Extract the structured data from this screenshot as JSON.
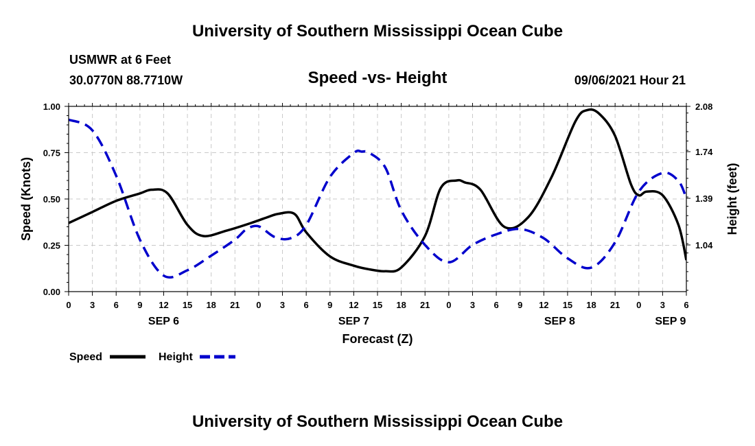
{
  "header": {
    "title": "University of Southern Mississippi Ocean Cube",
    "station": "USMWR at 6 Feet",
    "coords": "30.0770N  88.7710W",
    "timestamp": "09/06/2021 Hour 21"
  },
  "footer": {
    "title": "University of Southern Mississippi Ocean Cube"
  },
  "chart_data": {
    "type": "line",
    "title": "Speed -vs- Height",
    "xlabel": "Forecast (Z)",
    "ylabel_left": "Speed (Knots)",
    "ylabel_right": "Height (feet)",
    "x_range_hours": [
      0,
      78
    ],
    "x_ticks": [
      "0",
      "3",
      "6",
      "9",
      "12",
      "15",
      "18",
      "21",
      "0",
      "3",
      "6",
      "9",
      "12",
      "15",
      "18",
      "21",
      "0",
      "3",
      "6",
      "9",
      "12",
      "15",
      "18",
      "21",
      "0",
      "3",
      "6"
    ],
    "day_labels": [
      {
        "label": "SEP 6",
        "hour": 12
      },
      {
        "label": "SEP 7",
        "hour": 36
      },
      {
        "label": "SEP 8",
        "hour": 62
      },
      {
        "label": "SEP 9",
        "hour": 76
      }
    ],
    "y_left": {
      "range": [
        0,
        1
      ],
      "ticks": [
        "0.00",
        "0.25",
        "0.50",
        "0.75",
        "1.00"
      ]
    },
    "y_right": {
      "range": [
        0.69,
        2.08
      ],
      "ticks": [
        "1.04",
        "1.39",
        "1.74",
        "2.08"
      ],
      "tick_values": [
        1.04,
        1.39,
        1.74,
        2.08
      ]
    },
    "grid": true,
    "legend": [
      {
        "name": "Speed",
        "color": "#000000",
        "style": "solid"
      },
      {
        "name": "Height",
        "color": "#0000cc",
        "style": "dashed"
      }
    ],
    "series": [
      {
        "name": "Speed",
        "axis": "left",
        "color": "#000000",
        "x": [
          0,
          3,
          6,
          9,
          10.5,
          12.5,
          15,
          17,
          20,
          23,
          25,
          26.5,
          28.5,
          30,
          33,
          36,
          38,
          40,
          42,
          45,
          47,
          49,
          50,
          52,
          55,
          58,
          61,
          64,
          65.5,
          67,
          69,
          71,
          72,
          73,
          75,
          77,
          78
        ],
        "values": [
          0.37,
          0.43,
          0.49,
          0.53,
          0.55,
          0.53,
          0.36,
          0.3,
          0.33,
          0.37,
          0.4,
          0.42,
          0.42,
          0.32,
          0.19,
          0.14,
          0.12,
          0.11,
          0.13,
          0.3,
          0.56,
          0.6,
          0.59,
          0.55,
          0.35,
          0.4,
          0.62,
          0.92,
          0.98,
          0.96,
          0.84,
          0.58,
          0.52,
          0.54,
          0.52,
          0.36,
          0.17
        ]
      },
      {
        "name": "Height",
        "axis": "right",
        "color": "#0000cc",
        "x": [
          0,
          3,
          6,
          9,
          12,
          15,
          18,
          21,
          22.5,
          24,
          26,
          28,
          30,
          33,
          36,
          37,
          38,
          40,
          42,
          45,
          48,
          51,
          54,
          57,
          60,
          63,
          66,
          69,
          72,
          75,
          77,
          78
        ],
        "values": [
          1.98,
          1.9,
          1.56,
          1.08,
          0.81,
          0.85,
          0.96,
          1.08,
          1.16,
          1.18,
          1.1,
          1.09,
          1.19,
          1.55,
          1.73,
          1.74,
          1.73,
          1.62,
          1.3,
          1.04,
          0.91,
          1.04,
          1.12,
          1.16,
          1.09,
          0.94,
          0.87,
          1.06,
          1.44,
          1.58,
          1.52,
          1.39
        ]
      }
    ]
  }
}
